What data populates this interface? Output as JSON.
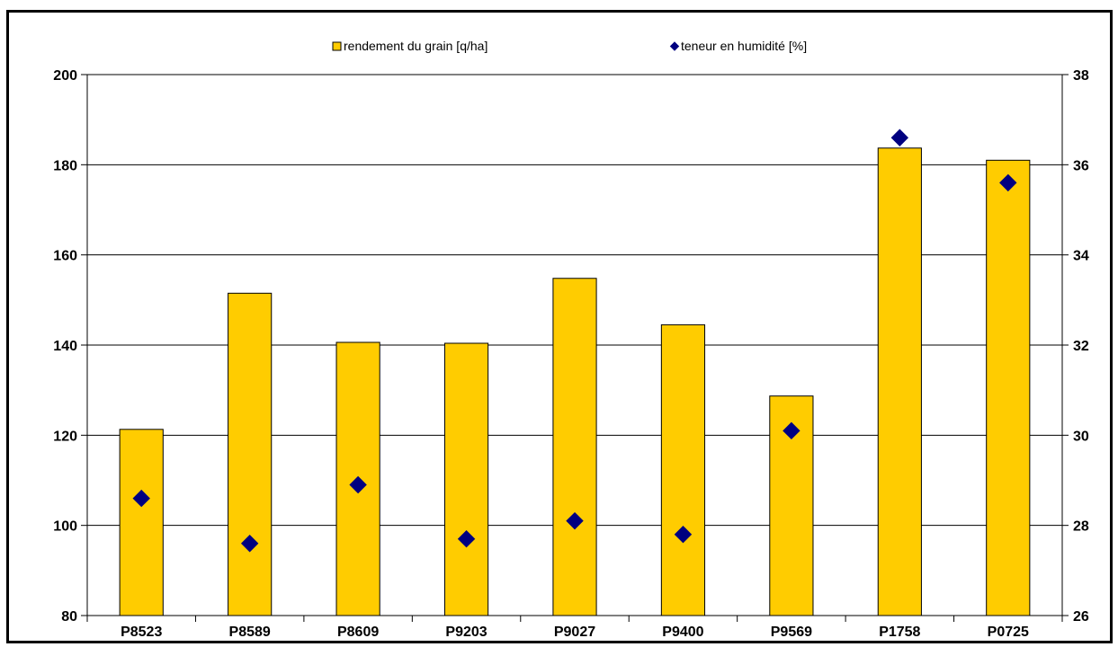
{
  "chart_data": {
    "type": "bar",
    "categories": [
      "P8523",
      "P8589",
      "P8609",
      "P9203",
      "P9027",
      "P9400",
      "P9569",
      "P1758",
      "P0725"
    ],
    "series": [
      {
        "name": "rendement du grain [q/ha]",
        "type": "bar",
        "axis": "left",
        "color": "#FFCC00",
        "values": [
          121.3,
          151.5,
          140.6,
          140.4,
          154.8,
          144.5,
          128.7,
          183.7,
          181.0
        ]
      },
      {
        "name": "teneur en humidité [%]",
        "type": "scatter",
        "axis": "right",
        "color": "#000080",
        "values": [
          28.6,
          27.6,
          28.9,
          27.7,
          28.1,
          27.8,
          30.1,
          36.6,
          35.6
        ]
      }
    ],
    "ylim": [
      80,
      200
    ],
    "yticks": [
      "80",
      "100",
      "120",
      "140",
      "160",
      "180",
      "200"
    ],
    "y2lim": [
      26,
      38
    ],
    "y2ticks": [
      "26",
      "28",
      "30",
      "32",
      "34",
      "36",
      "38"
    ],
    "grid": true,
    "legend": "top-center",
    "xlabel": "",
    "ylabel": "",
    "y2label": ""
  }
}
